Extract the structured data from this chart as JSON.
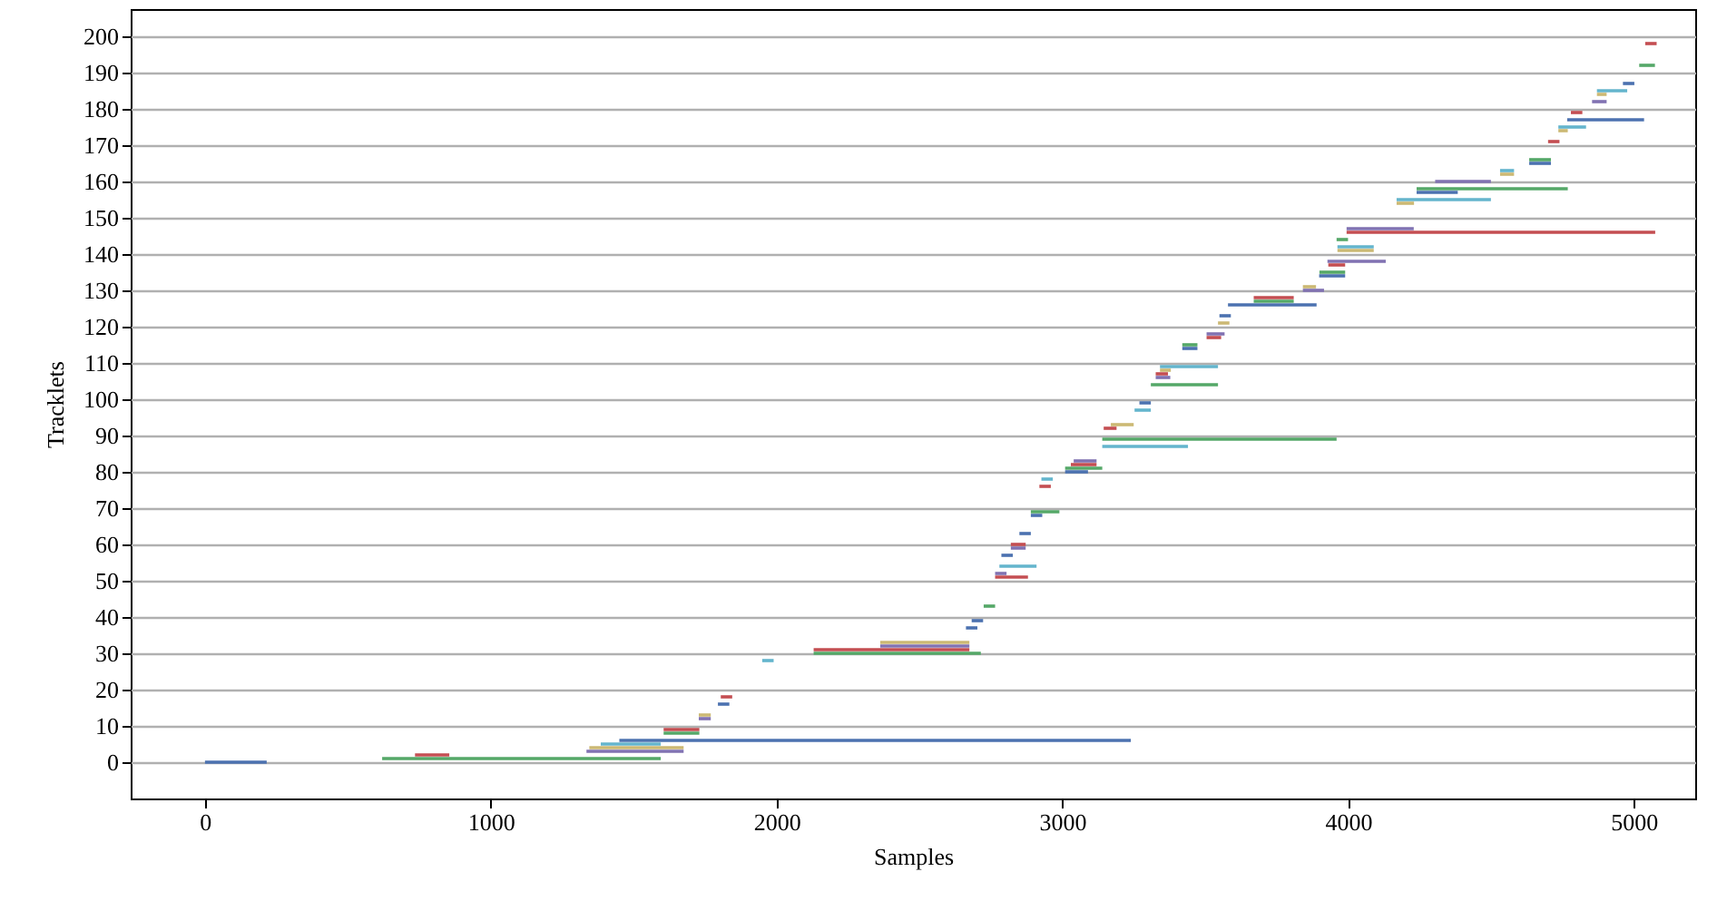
{
  "chart_data": {
    "type": "line",
    "xlabel": "Samples",
    "ylabel": "Tracklets",
    "xlim": [
      -260,
      5215
    ],
    "ylim": [
      -10,
      207.5
    ],
    "xticks": [
      0,
      1000,
      2000,
      3000,
      4000,
      5000
    ],
    "yticks": [
      0,
      10,
      20,
      30,
      40,
      50,
      60,
      70,
      80,
      90,
      100,
      110,
      120,
      130,
      140,
      150,
      160,
      170,
      180,
      190,
      200
    ],
    "grid": "y",
    "line_style": "solid",
    "series": [
      {
        "color": "#4c72b0",
        "x": [
          0,
          216
        ],
        "values": [
          0,
          0
        ]
      },
      {
        "color": "#55a868",
        "x": [
          620,
          1595
        ],
        "values": [
          1,
          1
        ]
      },
      {
        "color": "#c44e52",
        "x": [
          735,
          855
        ],
        "values": [
          2,
          2
        ]
      },
      {
        "color": "#8172b2",
        "x": [
          1335,
          1675
        ],
        "values": [
          3,
          3
        ]
      },
      {
        "color": "#ccb974",
        "x": [
          1345,
          1675
        ],
        "values": [
          4,
          4
        ]
      },
      {
        "color": "#64b5cd",
        "x": [
          1385,
          1595
        ],
        "values": [
          5,
          5
        ]
      },
      {
        "color": "#4c72b0",
        "x": [
          1450,
          3240
        ],
        "values": [
          6,
          6
        ]
      },
      {
        "color": "#55a868",
        "x": [
          1605,
          1730
        ],
        "values": [
          8,
          8
        ]
      },
      {
        "color": "#c44e52",
        "x": [
          1605,
          1730
        ],
        "values": [
          9,
          9
        ]
      },
      {
        "color": "#8172b2",
        "x": [
          1728,
          1770
        ],
        "values": [
          12,
          12
        ]
      },
      {
        "color": "#ccb974",
        "x": [
          1728,
          1770
        ],
        "values": [
          13,
          13
        ]
      },
      {
        "color": "#4c72b0",
        "x": [
          1795,
          1835
        ],
        "values": [
          16,
          16
        ]
      },
      {
        "color": "#c44e52",
        "x": [
          1805,
          1845
        ],
        "values": [
          18,
          18
        ]
      },
      {
        "color": "#64b5cd",
        "x": [
          1950,
          1990
        ],
        "values": [
          28,
          28
        ]
      },
      {
        "color": "#55a868",
        "x": [
          2130,
          2715
        ],
        "values": [
          30,
          30
        ]
      },
      {
        "color": "#c44e52",
        "x": [
          2130,
          2675
        ],
        "values": [
          31,
          31
        ]
      },
      {
        "color": "#8172b2",
        "x": [
          2363,
          2675
        ],
        "values": [
          32,
          32
        ]
      },
      {
        "color": "#ccb974",
        "x": [
          2363,
          2675
        ],
        "values": [
          33,
          33
        ]
      },
      {
        "color": "#4c72b0",
        "x": [
          2663,
          2703
        ],
        "values": [
          37,
          37
        ]
      },
      {
        "color": "#4c72b0",
        "x": [
          2683,
          2723
        ],
        "values": [
          39,
          39
        ]
      },
      {
        "color": "#55a868",
        "x": [
          2725,
          2765
        ],
        "values": [
          43,
          43
        ]
      },
      {
        "color": "#c44e52",
        "x": [
          2765,
          2880
        ],
        "values": [
          51,
          51
        ]
      },
      {
        "color": "#8172b2",
        "x": [
          2765,
          2805
        ],
        "values": [
          52,
          52
        ]
      },
      {
        "color": "#64b5cd",
        "x": [
          2780,
          2910
        ],
        "values": [
          54,
          54
        ]
      },
      {
        "color": "#4c72b0",
        "x": [
          2787,
          2827
        ],
        "values": [
          57,
          57
        ]
      },
      {
        "color": "#8172b2",
        "x": [
          2820,
          2872
        ],
        "values": [
          59,
          59
        ]
      },
      {
        "color": "#c44e52",
        "x": [
          2820,
          2872
        ],
        "values": [
          60,
          60
        ]
      },
      {
        "color": "#4c72b0",
        "x": [
          2850,
          2890
        ],
        "values": [
          63,
          63
        ]
      },
      {
        "color": "#4c72b0",
        "x": [
          2890,
          2930
        ],
        "values": [
          68,
          68
        ]
      },
      {
        "color": "#55a868",
        "x": [
          2890,
          2990
        ],
        "values": [
          69,
          69
        ]
      },
      {
        "color": "#c44e52",
        "x": [
          2920,
          2960
        ],
        "values": [
          76,
          76
        ]
      },
      {
        "color": "#64b5cd",
        "x": [
          2927,
          2967
        ],
        "values": [
          78,
          78
        ]
      },
      {
        "color": "#4c72b0",
        "x": [
          3010,
          3090
        ],
        "values": [
          80,
          80
        ]
      },
      {
        "color": "#55a868",
        "x": [
          3010,
          3140
        ],
        "values": [
          81,
          81
        ]
      },
      {
        "color": "#c44e52",
        "x": [
          3030,
          3120
        ],
        "values": [
          82,
          82
        ]
      },
      {
        "color": "#8172b2",
        "x": [
          3040,
          3120
        ],
        "values": [
          83,
          83
        ]
      },
      {
        "color": "#64b5cd",
        "x": [
          3140,
          3440
        ],
        "values": [
          87,
          87
        ]
      },
      {
        "color": "#55a868",
        "x": [
          3140,
          3960
        ],
        "values": [
          89,
          89
        ]
      },
      {
        "color": "#c44e52",
        "x": [
          3145,
          3190
        ],
        "values": [
          92,
          92
        ]
      },
      {
        "color": "#ccb974",
        "x": [
          3170,
          3250
        ],
        "values": [
          93,
          93
        ]
      },
      {
        "color": "#64b5cd",
        "x": [
          3253,
          3310
        ],
        "values": [
          97,
          97
        ]
      },
      {
        "color": "#4c72b0",
        "x": [
          3270,
          3310
        ],
        "values": [
          99,
          99
        ]
      },
      {
        "color": "#55a868",
        "x": [
          3310,
          3545
        ],
        "values": [
          104,
          104
        ]
      },
      {
        "color": "#8172b2",
        "x": [
          3327,
          3378
        ],
        "values": [
          106,
          106
        ]
      },
      {
        "color": "#c44e52",
        "x": [
          3327,
          3370
        ],
        "values": [
          107,
          107
        ]
      },
      {
        "color": "#ccb974",
        "x": [
          3342,
          3380
        ],
        "values": [
          108,
          108
        ]
      },
      {
        "color": "#64b5cd",
        "x": [
          3342,
          3545
        ],
        "values": [
          109,
          109
        ]
      },
      {
        "color": "#4c72b0",
        "x": [
          3420,
          3473
        ],
        "values": [
          114,
          114
        ]
      },
      {
        "color": "#55a868",
        "x": [
          3420,
          3473
        ],
        "values": [
          115,
          115
        ]
      },
      {
        "color": "#c44e52",
        "x": [
          3505,
          3556
        ],
        "values": [
          117,
          117
        ]
      },
      {
        "color": "#8172b2",
        "x": [
          3505,
          3568
        ],
        "values": [
          118,
          118
        ]
      },
      {
        "color": "#ccb974",
        "x": [
          3545,
          3585
        ],
        "values": [
          121,
          121
        ]
      },
      {
        "color": "#4c72b0",
        "x": [
          3550,
          3590
        ],
        "values": [
          123,
          123
        ]
      },
      {
        "color": "#4c72b0",
        "x": [
          3580,
          3890
        ],
        "values": [
          126,
          126
        ]
      },
      {
        "color": "#55a868",
        "x": [
          3670,
          3810
        ],
        "values": [
          127,
          127
        ]
      },
      {
        "color": "#c44e52",
        "x": [
          3670,
          3810
        ],
        "values": [
          128,
          128
        ]
      },
      {
        "color": "#8172b2",
        "x": [
          3842,
          3916
        ],
        "values": [
          130,
          130
        ]
      },
      {
        "color": "#ccb974",
        "x": [
          3842,
          3888
        ],
        "values": [
          131,
          131
        ]
      },
      {
        "color": "#4c72b0",
        "x": [
          3899,
          3990
        ],
        "values": [
          134,
          134
        ]
      },
      {
        "color": "#55a868",
        "x": [
          3900,
          3990
        ],
        "values": [
          135,
          135
        ]
      },
      {
        "color": "#c44e52",
        "x": [
          3931,
          3990
        ],
        "values": [
          137,
          137
        ]
      },
      {
        "color": "#8172b2",
        "x": [
          3928,
          4132
        ],
        "values": [
          138,
          138
        ]
      },
      {
        "color": "#ccb974",
        "x": [
          3963,
          4090
        ],
        "values": [
          141,
          141
        ]
      },
      {
        "color": "#64b5cd",
        "x": [
          3963,
          4090
        ],
        "values": [
          142,
          142
        ]
      },
      {
        "color": "#55a868",
        "x": [
          3960,
          4000
        ],
        "values": [
          144,
          144
        ]
      },
      {
        "color": "#c44e52",
        "x": [
          3995,
          5075
        ],
        "values": [
          146,
          146
        ]
      },
      {
        "color": "#8172b2",
        "x": [
          3995,
          4230
        ],
        "values": [
          147,
          147
        ]
      },
      {
        "color": "#ccb974",
        "x": [
          4170,
          4231
        ],
        "values": [
          154,
          154
        ]
      },
      {
        "color": "#64b5cd",
        "x": [
          4170,
          4500
        ],
        "values": [
          155,
          155
        ]
      },
      {
        "color": "#4c72b0",
        "x": [
          4240,
          4384
        ],
        "values": [
          157,
          157
        ]
      },
      {
        "color": "#55a868",
        "x": [
          4240,
          4769
        ],
        "values": [
          158,
          158
        ]
      },
      {
        "color": "#8172b2",
        "x": [
          4305,
          4500
        ],
        "values": [
          160,
          160
        ]
      },
      {
        "color": "#ccb974",
        "x": [
          4532,
          4581
        ],
        "values": [
          162,
          162
        ]
      },
      {
        "color": "#64b5cd",
        "x": [
          4532,
          4581
        ],
        "values": [
          163,
          163
        ]
      },
      {
        "color": "#4c72b0",
        "x": [
          4634,
          4710
        ],
        "values": [
          165,
          165
        ]
      },
      {
        "color": "#55a868",
        "x": [
          4634,
          4710
        ],
        "values": [
          166,
          166
        ]
      },
      {
        "color": "#c44e52",
        "x": [
          4700,
          4740
        ],
        "values": [
          171,
          171
        ]
      },
      {
        "color": "#ccb974",
        "x": [
          4736,
          4769
        ],
        "values": [
          174,
          174
        ]
      },
      {
        "color": "#64b5cd",
        "x": [
          4736,
          4833
        ],
        "values": [
          175,
          175
        ]
      },
      {
        "color": "#4c72b0",
        "x": [
          4767,
          5036
        ],
        "values": [
          177,
          177
        ]
      },
      {
        "color": "#c44e52",
        "x": [
          4780,
          4820
        ],
        "values": [
          179,
          179
        ]
      },
      {
        "color": "#8172b2",
        "x": [
          4854,
          4905
        ],
        "values": [
          182,
          182
        ]
      },
      {
        "color": "#ccb974",
        "x": [
          4871,
          4905
        ],
        "values": [
          184,
          184
        ]
      },
      {
        "color": "#64b5cd",
        "x": [
          4871,
          4977
        ],
        "values": [
          185,
          185
        ]
      },
      {
        "color": "#4c72b0",
        "x": [
          4962,
          5002
        ],
        "values": [
          187,
          187
        ]
      },
      {
        "color": "#55a868",
        "x": [
          5019,
          5074
        ],
        "values": [
          192,
          192
        ]
      },
      {
        "color": "#c44e52",
        "x": [
          5040,
          5080
        ],
        "values": [
          198,
          198
        ]
      }
    ]
  }
}
